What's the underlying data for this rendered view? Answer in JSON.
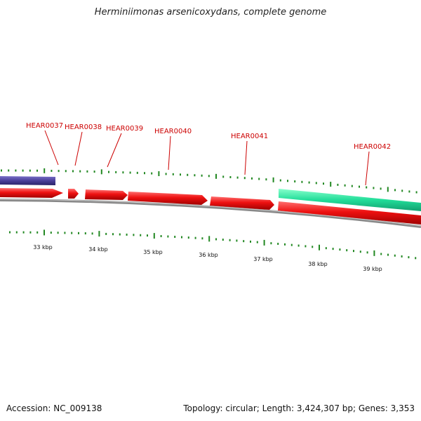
{
  "title": "Herminiimonas arsenicoxydans, complete genome",
  "footer": {
    "accession": "Accession: NC_009138",
    "summary": "Topology: circular; Length: 3,424,307 bp; Genes: 3,353"
  },
  "colors": {
    "forward_gene": "#ee1111",
    "blue_feature": "#4a3f9a",
    "green_feature": "#22dd99",
    "backbone": "#888888",
    "tick": "#228822",
    "label": "#cc0000"
  },
  "gene_labels": [
    {
      "id": "HEAR0037",
      "text": "HEAR0037"
    },
    {
      "id": "HEAR0038",
      "text": "HEAR0038"
    },
    {
      "id": "HEAR0039",
      "text": "HEAR0039"
    },
    {
      "id": "HEAR0040",
      "text": "HEAR0040"
    },
    {
      "id": "HEAR0041",
      "text": "HEAR0041"
    },
    {
      "id": "HEAR0042",
      "text": "HEAR0042"
    }
  ],
  "kbp_labels": [
    "33 kbp",
    "34 kbp",
    "35 kbp",
    "36 kbp",
    "37 kbp",
    "38 kbp",
    "39 kbp"
  ]
}
